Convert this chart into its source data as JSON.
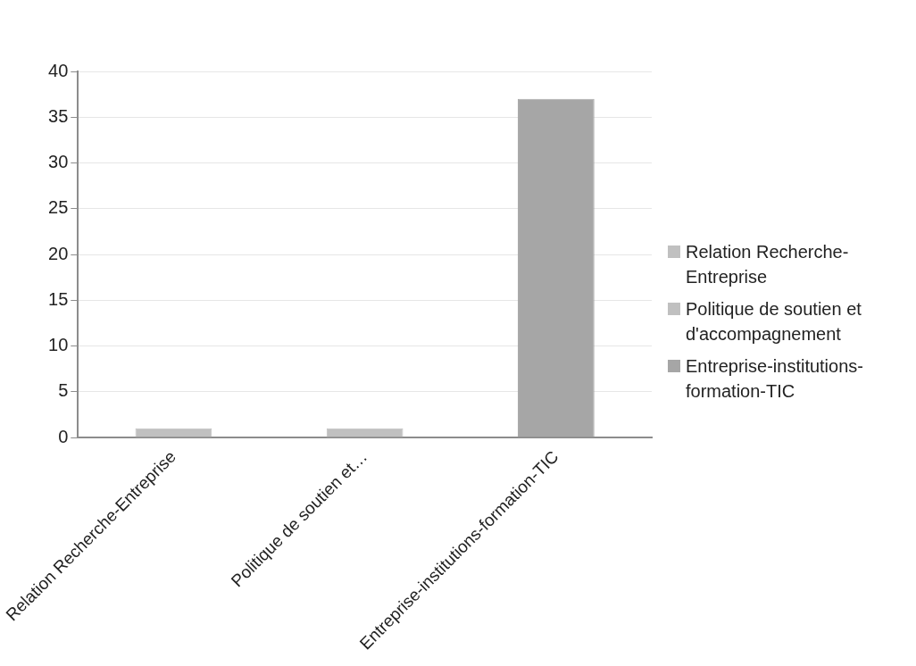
{
  "chart_data": {
    "type": "bar",
    "categories": [
      "Relation Recherche-Entreprise",
      "Politique de soutien et…",
      "Entreprise-institutions-formation-TIC"
    ],
    "series": [
      {
        "name": "Relation Recherche-Entreprise",
        "color": "#c0c0c0",
        "values": [
          1,
          null,
          null
        ]
      },
      {
        "name": "Politique de soutien et d'accompagnement",
        "color": "#c0c0c0",
        "values": [
          null,
          1,
          null
        ]
      },
      {
        "name": "Entreprise-institutions-formation-TIC",
        "color": "#a6a6a6",
        "values": [
          null,
          null,
          37
        ]
      }
    ],
    "stacked": true,
    "ylim": [
      0,
      40
    ],
    "yticks": [
      0,
      5,
      10,
      15,
      20,
      25,
      30,
      35,
      40
    ],
    "grid": "y",
    "legend": "right"
  }
}
